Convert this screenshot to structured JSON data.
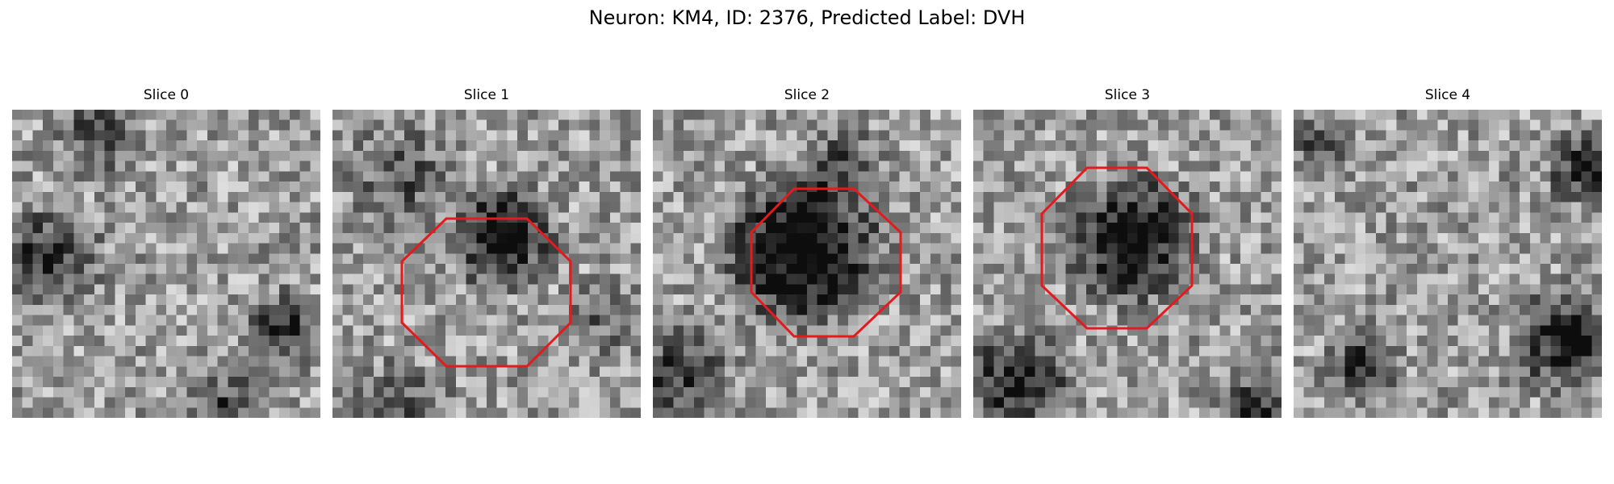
{
  "figure": {
    "title": "Neuron: KM4, ID: 2376, Predicted Label: DVH",
    "overlay_color": "#e41a1c",
    "colormap": "gray"
  },
  "panels": [
    {
      "title": "Slice 0",
      "has_outline": false
    },
    {
      "title": "Slice 1",
      "has_outline": true
    },
    {
      "title": "Slice 2",
      "has_outline": true
    },
    {
      "title": "Slice 3",
      "has_outline": true
    },
    {
      "title": "Slice 4",
      "has_outline": false
    }
  ]
}
